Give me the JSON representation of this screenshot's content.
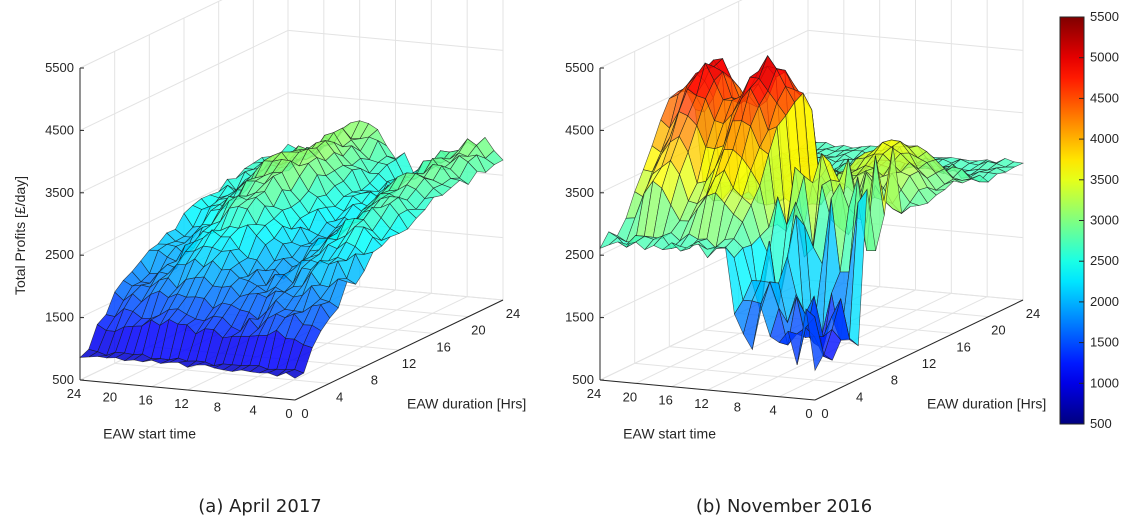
{
  "captions": [
    "(a) April 2017",
    "(b) November 2016"
  ],
  "colorbar": {
    "colormap": "jet",
    "range": [
      500,
      5500
    ],
    "ticks": [
      "500",
      "1000",
      "1500",
      "2000",
      "2500",
      "3000",
      "3500",
      "4000",
      "4500",
      "5000",
      "5500"
    ]
  },
  "chart_data": [
    {
      "type": "surface",
      "title": "",
      "caption": "(a) April 2017",
      "xlabel": "EAW start time",
      "ylabel": "EAW duration [Hrs]",
      "zlabel": "Total Profits [£/day]",
      "xlim": [
        0,
        24
      ],
      "ylim": [
        0,
        24
      ],
      "zlim": [
        500,
        5500
      ],
      "xticks": [
        "24",
        "20",
        "16",
        "12",
        "8",
        "4",
        "0"
      ],
      "yticks": [
        "0",
        "4",
        "8",
        "12",
        "16",
        "20",
        "24"
      ],
      "zticks": [
        "500",
        "1500",
        "2500",
        "3500",
        "4500",
        "5500"
      ],
      "grid": true,
      "approx_surface": {
        "description_values": "profit grows with EAW duration; start time has minor effect",
        "at_duration_0": 1000,
        "at_duration_8": 1700,
        "at_duration_16": 2600,
        "at_duration_24": 2900,
        "peak": 3400
      }
    },
    {
      "type": "surface",
      "title": "",
      "caption": "(b) November 2016",
      "xlabel": "EAW start time",
      "ylabel": "EAW duration [Hrs]",
      "zlabel": "",
      "xlim": [
        0,
        24
      ],
      "ylim": [
        0,
        24
      ],
      "zlim": [
        500,
        5500
      ],
      "xticks": [
        "24",
        "20",
        "16",
        "12",
        "8",
        "4",
        "0"
      ],
      "yticks": [
        "0",
        "4",
        "8",
        "12",
        "16",
        "20",
        "24"
      ],
      "zticks": [
        "500",
        "1500",
        "2500",
        "3500",
        "4500",
        "5500"
      ],
      "grid": true,
      "approx_surface": {
        "peak": 5400,
        "secondary_peak": 4300,
        "minimum": 1100,
        "far_edge_level": 2700
      }
    }
  ]
}
